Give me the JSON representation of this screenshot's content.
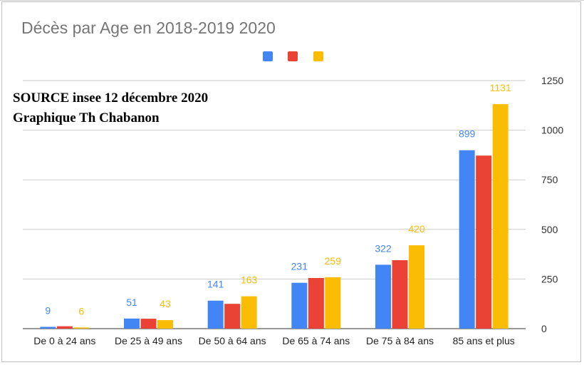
{
  "chart_data": {
    "type": "bar",
    "title": "Décès par Age en 2018-2019 2020",
    "annotations": [
      "SOURCE insee 12 décembre 2020",
      "Graphique Th Chabanon"
    ],
    "categories": [
      "De 0 à 24 ans",
      "De 25 à 49 ans",
      "De 50 à 64 ans",
      "De 65 à 74 ans",
      "De 75 à 84 ans",
      "85 ans et plus"
    ],
    "series": [
      {
        "color": "#4285f4",
        "values": [
          9,
          51,
          141,
          231,
          322,
          899
        ],
        "labels": [
          "9",
          "51",
          "141",
          "231",
          "322",
          "899"
        ]
      },
      {
        "color": "#ea4335",
        "values": [
          12,
          50,
          125,
          255,
          345,
          872
        ],
        "labels": [
          "",
          "",
          "",
          "",
          "",
          ""
        ]
      },
      {
        "color": "#fbbc04",
        "values": [
          6,
          43,
          163,
          259,
          420,
          1131
        ],
        "labels": [
          "6",
          "43",
          "163",
          "259",
          "420",
          "1131"
        ]
      }
    ],
    "ylim": [
      0,
      1250
    ],
    "yticks": [
      "0",
      "250",
      "500",
      "750",
      "1000",
      "1250"
    ],
    "ytick_values": [
      0,
      250,
      500,
      750,
      1000,
      1250
    ],
    "y_axis_side": "right",
    "grid": true,
    "legend_position": "top-center",
    "xlabel": "",
    "ylabel": ""
  }
}
